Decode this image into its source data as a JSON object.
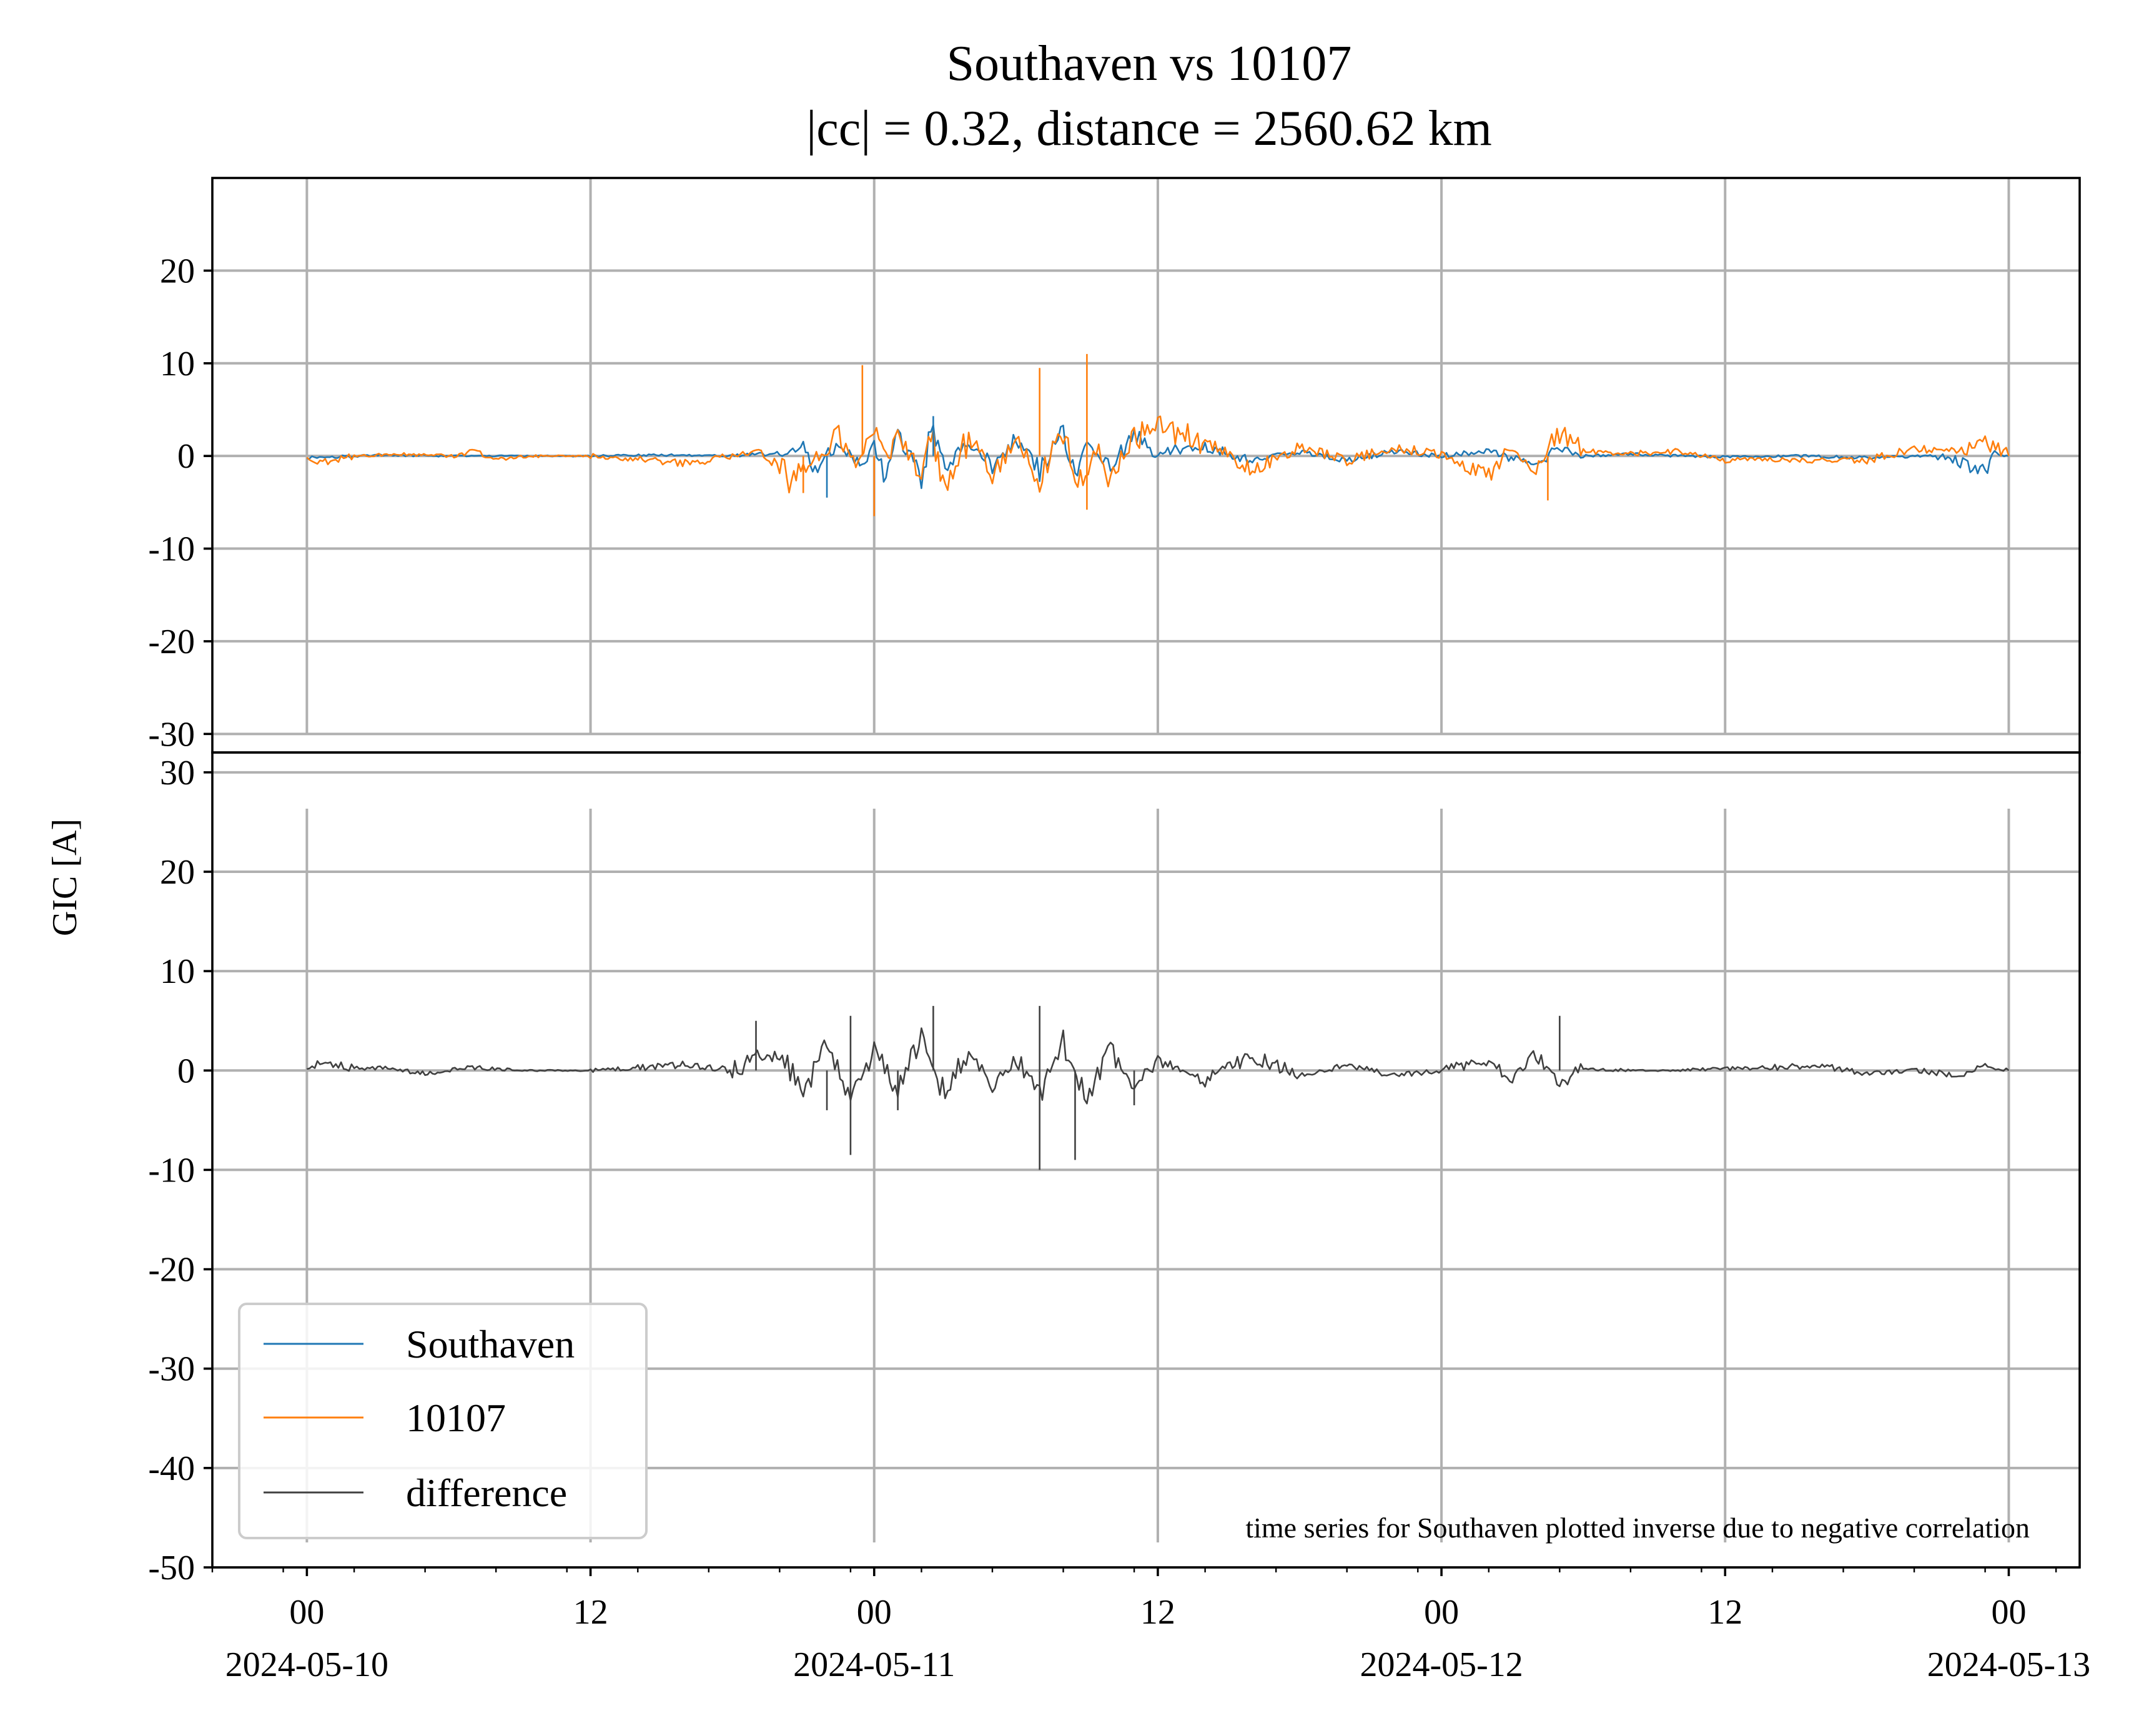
{
  "chart_data": {
    "type": "line",
    "title": "Southaven vs 10107",
    "subtitle": "|cc| = 0.32, distance = 2560.62 km",
    "ylabel": "GIC [A]",
    "annotation": "time series for Southaven plotted inverse due to negative correlation",
    "x_range": [
      "2024-05-09T20:00",
      "2024-05-13T03:00"
    ],
    "x_tick_labels": [
      {
        "t": "2024-05-10T00:00",
        "line1": "00",
        "line2": "2024-05-10"
      },
      {
        "t": "2024-05-10T12:00",
        "line1": "12",
        "line2": ""
      },
      {
        "t": "2024-05-11T00:00",
        "line1": "00",
        "line2": "2024-05-11"
      },
      {
        "t": "2024-05-11T12:00",
        "line1": "12",
        "line2": ""
      },
      {
        "t": "2024-05-12T00:00",
        "line1": "00",
        "line2": "2024-05-12"
      },
      {
        "t": "2024-05-12T12:00",
        "line1": "12",
        "line2": ""
      },
      {
        "t": "2024-05-13T00:00",
        "line1": "00",
        "line2": "2024-05-13"
      }
    ],
    "grid": true,
    "legend": {
      "location": "lower-left",
      "entries": [
        {
          "name": "Southaven",
          "color": "#1f77b4"
        },
        {
          "name": "10107",
          "color": "#ff7f0e"
        },
        {
          "name": "difference",
          "color": "#404040"
        }
      ]
    },
    "panels": [
      {
        "ylim": [
          -32,
          30
        ],
        "y_ticks": [
          20,
          10,
          0,
          -10,
          -20,
          -30
        ],
        "series": [
          {
            "name": "Southaven",
            "color": "#1f77b4",
            "points": [
              [
                "2024-05-10T00:00",
                -0.2
              ],
              [
                "2024-05-10T03:00",
                0.1
              ],
              [
                "2024-05-10T06:00",
                0.0
              ],
              [
                "2024-05-10T09:00",
                0.0
              ],
              [
                "2024-05-10T12:00",
                0.0
              ],
              [
                "2024-05-10T15:00",
                0.1
              ],
              [
                "2024-05-10T18:00",
                0.0
              ],
              [
                "2024-05-10T20:00",
                0.3
              ],
              [
                "2024-05-10T21:00",
                1.0
              ],
              [
                "2024-05-10T21:30",
                -1.5
              ],
              [
                "2024-05-10T22:30",
                1.5
              ],
              [
                "2024-05-10T23:30",
                -1.0
              ],
              [
                "2024-05-11T00:00",
                1.5
              ],
              [
                "2024-05-11T00:30",
                -2.5
              ],
              [
                "2024-05-11T01:00",
                2.0
              ],
              [
                "2024-05-11T02:00",
                -1.5
              ],
              [
                "2024-05-11T02:30",
                4.3
              ],
              [
                "2024-05-11T03:00",
                -2.0
              ],
              [
                "2024-05-11T04:00",
                1.5
              ],
              [
                "2024-05-11T05:00",
                -1.0
              ],
              [
                "2024-05-11T06:00",
                2.0
              ],
              [
                "2024-05-11T07:00",
                -1.5
              ],
              [
                "2024-05-11T08:00",
                3.0
              ],
              [
                "2024-05-11T08:30",
                -2.5
              ],
              [
                "2024-05-11T09:00",
                1.0
              ],
              [
                "2024-05-11T10:00",
                -1.0
              ],
              [
                "2024-05-11T11:00",
                2.0
              ],
              [
                "2024-05-11T12:00",
                0.5
              ],
              [
                "2024-05-11T14:00",
                1.0
              ],
              [
                "2024-05-11T16:00",
                -0.5
              ],
              [
                "2024-05-11T18:00",
                0.5
              ],
              [
                "2024-05-11T20:00",
                -0.5
              ],
              [
                "2024-05-11T22:00",
                0.5
              ],
              [
                "2024-05-12T00:00",
                0.0
              ],
              [
                "2024-05-12T02:00",
                0.5
              ],
              [
                "2024-05-12T04:00",
                -1.0
              ],
              [
                "2024-05-12T05:00",
                1.0
              ],
              [
                "2024-05-12T06:00",
                0.0
              ],
              [
                "2024-05-12T08:00",
                0.2
              ],
              [
                "2024-05-12T10:00",
                0.0
              ],
              [
                "2024-05-12T12:00",
                -0.1
              ],
              [
                "2024-05-12T15:00",
                0.0
              ],
              [
                "2024-05-12T18:00",
                -0.2
              ],
              [
                "2024-05-12T21:00",
                0.0
              ],
              [
                "2024-05-12T23:00",
                -1.5
              ],
              [
                "2024-05-12T23:30",
                0.2
              ],
              [
                "2024-05-13T00:00",
                0.0
              ]
            ]
          },
          {
            "name": "10107",
            "color": "#ff7f0e",
            "points": [
              [
                "2024-05-10T00:00",
                -0.5
              ],
              [
                "2024-05-10T01:00",
                -0.6
              ],
              [
                "2024-05-10T02:00",
                0.0
              ],
              [
                "2024-05-10T04:00",
                0.2
              ],
              [
                "2024-05-10T06:00",
                0.0
              ],
              [
                "2024-05-10T07:00",
                0.5
              ],
              [
                "2024-05-10T08:00",
                -0.3
              ],
              [
                "2024-05-10T10:00",
                0.0
              ],
              [
                "2024-05-10T12:00",
                0.0
              ],
              [
                "2024-05-10T14:00",
                -0.4
              ],
              [
                "2024-05-10T16:00",
                -0.8
              ],
              [
                "2024-05-10T18:00",
                0.0
              ],
              [
                "2024-05-10T19:00",
                0.5
              ],
              [
                "2024-05-10T20:00",
                -1.0
              ],
              [
                "2024-05-10T20:30",
                -3.5
              ],
              [
                "2024-05-10T21:00",
                -1.5
              ],
              [
                "2024-05-10T22:00",
                1.0
              ],
              [
                "2024-05-10T22:30",
                3.0
              ],
              [
                "2024-05-10T23:00",
                -1.0
              ],
              [
                "2024-05-11T00:00",
                2.5
              ],
              [
                "2024-05-11T00:30",
                -0.5
              ],
              [
                "2024-05-11T01:00",
                2.0
              ],
              [
                "2024-05-11T02:00",
                -2.0
              ],
              [
                "2024-05-11T02:30",
                3.0
              ],
              [
                "2024-05-11T03:00",
                -4.5
              ],
              [
                "2024-05-11T04:00",
                2.0
              ],
              [
                "2024-05-11T05:00",
                -2.0
              ],
              [
                "2024-05-11T06:00",
                1.5
              ],
              [
                "2024-05-11T07:00",
                -2.5
              ],
              [
                "2024-05-11T08:00",
                3.0
              ],
              [
                "2024-05-11T08:30",
                -4.0
              ],
              [
                "2024-05-11T09:30",
                1.5
              ],
              [
                "2024-05-11T10:00",
                -3.0
              ],
              [
                "2024-05-11T11:00",
                2.0
              ],
              [
                "2024-05-11T12:00",
                3.0
              ],
              [
                "2024-05-11T14:00",
                1.5
              ],
              [
                "2024-05-11T16:00",
                -1.5
              ],
              [
                "2024-05-11T18:00",
                1.0
              ],
              [
                "2024-05-11T20:00",
                -0.5
              ],
              [
                "2024-05-11T22:00",
                1.0
              ],
              [
                "2024-05-12T00:00",
                0.0
              ],
              [
                "2024-05-12T01:00",
                -1.0
              ],
              [
                "2024-05-12T02:00",
                -2.0
              ],
              [
                "2024-05-12T03:00",
                1.0
              ],
              [
                "2024-05-12T04:00",
                -1.5
              ],
              [
                "2024-05-12T05:00",
                2.5
              ],
              [
                "2024-05-12T06:00",
                0.5
              ],
              [
                "2024-05-12T08:00",
                0.3
              ],
              [
                "2024-05-12T10:00",
                0.5
              ],
              [
                "2024-05-12T12:00",
                -0.5
              ],
              [
                "2024-05-12T14:00",
                -0.3
              ],
              [
                "2024-05-12T16:00",
                -0.5
              ],
              [
                "2024-05-12T18:00",
                -0.5
              ],
              [
                "2024-05-12T20:00",
                0.8
              ],
              [
                "2024-05-12T22:00",
                0.5
              ],
              [
                "2024-05-12T23:00",
                1.5
              ],
              [
                "2024-05-13T00:00",
                0.0
              ]
            ]
          }
        ],
        "spikes": [
          {
            "series": "10107",
            "t": "2024-05-10T21:00",
            "value": -4.0
          },
          {
            "series": "10107",
            "t": "2024-05-11T00:00",
            "value": -6.5
          },
          {
            "series": "10107",
            "t": "2024-05-10T23:30",
            "value": 9.8
          },
          {
            "series": "10107",
            "t": "2024-05-11T07:00",
            "value": 9.5
          },
          {
            "series": "10107",
            "t": "2024-05-11T09:00",
            "value": 11.0
          },
          {
            "series": "10107",
            "t": "2024-05-11T09:00",
            "value": -5.8
          },
          {
            "series": "10107",
            "t": "2024-05-12T04:30",
            "value": -4.8
          },
          {
            "series": "Southaven",
            "t": "2024-05-11T02:30",
            "value": 4.3
          },
          {
            "series": "Southaven",
            "t": "2024-05-10T22:00",
            "value": -4.5
          }
        ]
      },
      {
        "ylim": [
          -50,
          32
        ],
        "y_ticks": [
          30,
          20,
          10,
          0,
          -10,
          -20,
          -30,
          -40,
          -50
        ],
        "series": [
          {
            "name": "difference",
            "color": "#404040",
            "points": [
              [
                "2024-05-10T00:00",
                0.5
              ],
              [
                "2024-05-10T01:00",
                0.7
              ],
              [
                "2024-05-10T02:00",
                0.2
              ],
              [
                "2024-05-10T03:00",
                0.3
              ],
              [
                "2024-05-10T05:00",
                -0.3
              ],
              [
                "2024-05-10T07:00",
                0.3
              ],
              [
                "2024-05-10T09:00",
                0.0
              ],
              [
                "2024-05-10T12:00",
                0.0
              ],
              [
                "2024-05-10T14:00",
                0.3
              ],
              [
                "2024-05-10T16:00",
                0.6
              ],
              [
                "2024-05-10T18:00",
                0.0
              ],
              [
                "2024-05-10T20:00",
                2.0
              ],
              [
                "2024-05-10T21:00",
                -2.5
              ],
              [
                "2024-05-10T22:00",
                2.5
              ],
              [
                "2024-05-10T23:00",
                -2.5
              ],
              [
                "2024-05-11T00:00",
                2.0
              ],
              [
                "2024-05-11T01:00",
                -2.0
              ],
              [
                "2024-05-11T02:00",
                3.0
              ],
              [
                "2024-05-11T03:00",
                -2.5
              ],
              [
                "2024-05-11T04:00",
                2.0
              ],
              [
                "2024-05-11T05:00",
                -1.5
              ],
              [
                "2024-05-11T06:00",
                1.0
              ],
              [
                "2024-05-11T07:00",
                -2.5
              ],
              [
                "2024-05-11T08:00",
                3.0
              ],
              [
                "2024-05-11T09:00",
                -2.5
              ],
              [
                "2024-05-11T10:00",
                2.0
              ],
              [
                "2024-05-11T11:00",
                -1.5
              ],
              [
                "2024-05-11T12:00",
                1.0
              ],
              [
                "2024-05-11T14:00",
                -1.0
              ],
              [
                "2024-05-11T16:00",
                1.5
              ],
              [
                "2024-05-11T18:00",
                -0.5
              ],
              [
                "2024-05-11T20:00",
                0.5
              ],
              [
                "2024-05-11T22:00",
                -0.5
              ],
              [
                "2024-05-12T00:00",
                0.0
              ],
              [
                "2024-05-12T02:00",
                1.0
              ],
              [
                "2024-05-12T03:00",
                -1.0
              ],
              [
                "2024-05-12T04:00",
                1.5
              ],
              [
                "2024-05-12T05:00",
                -1.5
              ],
              [
                "2024-05-12T06:00",
                0.2
              ],
              [
                "2024-05-12T08:00",
                0.0
              ],
              [
                "2024-05-12T10:00",
                0.0
              ],
              [
                "2024-05-12T12:00",
                0.2
              ],
              [
                "2024-05-12T14:00",
                0.3
              ],
              [
                "2024-05-12T16:00",
                0.5
              ],
              [
                "2024-05-12T18:00",
                -0.3
              ],
              [
                "2024-05-12T20:00",
                0.0
              ],
              [
                "2024-05-12T22:00",
                -0.5
              ],
              [
                "2024-05-12T23:00",
                0.5
              ],
              [
                "2024-05-13T00:00",
                0.0
              ]
            ]
          }
        ],
        "spikes": [
          {
            "series": "difference",
            "t": "2024-05-10T19:00",
            "value": 5.0
          },
          {
            "series": "difference",
            "t": "2024-05-10T22:00",
            "value": -4.0
          },
          {
            "series": "difference",
            "t": "2024-05-10T23:00",
            "value": 5.5
          },
          {
            "series": "difference",
            "t": "2024-05-10T23:00",
            "value": -8.5
          },
          {
            "series": "difference",
            "t": "2024-05-11T01:00",
            "value": -4.0
          },
          {
            "series": "difference",
            "t": "2024-05-11T02:30",
            "value": 6.5
          },
          {
            "series": "difference",
            "t": "2024-05-11T07:00",
            "value": 6.5
          },
          {
            "series": "difference",
            "t": "2024-05-11T07:00",
            "value": -10.0
          },
          {
            "series": "difference",
            "t": "2024-05-11T08:30",
            "value": -9.0
          },
          {
            "series": "difference",
            "t": "2024-05-11T11:00",
            "value": -3.5
          },
          {
            "series": "difference",
            "t": "2024-05-12T05:00",
            "value": 5.5
          }
        ]
      }
    ]
  }
}
